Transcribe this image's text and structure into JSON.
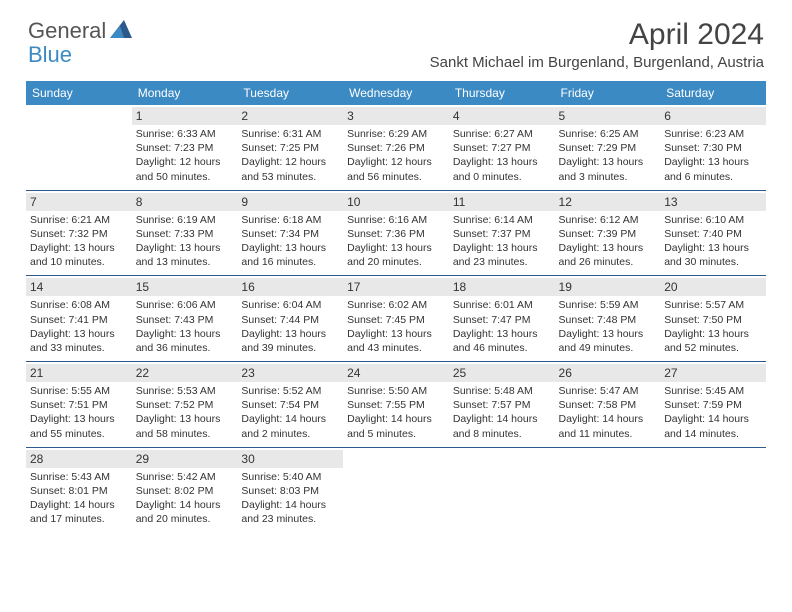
{
  "brand": {
    "part1": "General",
    "part2": "Blue"
  },
  "title": "April 2024",
  "location": "Sankt Michael im Burgenland, Burgenland, Austria",
  "colors": {
    "header_bg": "#3b8ac4",
    "header_text": "#ffffff",
    "daynum_bg": "#e8e8e8",
    "row_border": "#2d5a8a",
    "brand_gray": "#555555",
    "brand_blue": "#3b8ac4",
    "body_text": "#333333"
  },
  "weekdays": [
    "Sunday",
    "Monday",
    "Tuesday",
    "Wednesday",
    "Thursday",
    "Friday",
    "Saturday"
  ],
  "weeks": [
    [
      null,
      {
        "n": "1",
        "sr": "Sunrise: 6:33 AM",
        "ss": "Sunset: 7:23 PM",
        "d1": "Daylight: 12 hours",
        "d2": "and 50 minutes."
      },
      {
        "n": "2",
        "sr": "Sunrise: 6:31 AM",
        "ss": "Sunset: 7:25 PM",
        "d1": "Daylight: 12 hours",
        "d2": "and 53 minutes."
      },
      {
        "n": "3",
        "sr": "Sunrise: 6:29 AM",
        "ss": "Sunset: 7:26 PM",
        "d1": "Daylight: 12 hours",
        "d2": "and 56 minutes."
      },
      {
        "n": "4",
        "sr": "Sunrise: 6:27 AM",
        "ss": "Sunset: 7:27 PM",
        "d1": "Daylight: 13 hours",
        "d2": "and 0 minutes."
      },
      {
        "n": "5",
        "sr": "Sunrise: 6:25 AM",
        "ss": "Sunset: 7:29 PM",
        "d1": "Daylight: 13 hours",
        "d2": "and 3 minutes."
      },
      {
        "n": "6",
        "sr": "Sunrise: 6:23 AM",
        "ss": "Sunset: 7:30 PM",
        "d1": "Daylight: 13 hours",
        "d2": "and 6 minutes."
      }
    ],
    [
      {
        "n": "7",
        "sr": "Sunrise: 6:21 AM",
        "ss": "Sunset: 7:32 PM",
        "d1": "Daylight: 13 hours",
        "d2": "and 10 minutes."
      },
      {
        "n": "8",
        "sr": "Sunrise: 6:19 AM",
        "ss": "Sunset: 7:33 PM",
        "d1": "Daylight: 13 hours",
        "d2": "and 13 minutes."
      },
      {
        "n": "9",
        "sr": "Sunrise: 6:18 AM",
        "ss": "Sunset: 7:34 PM",
        "d1": "Daylight: 13 hours",
        "d2": "and 16 minutes."
      },
      {
        "n": "10",
        "sr": "Sunrise: 6:16 AM",
        "ss": "Sunset: 7:36 PM",
        "d1": "Daylight: 13 hours",
        "d2": "and 20 minutes."
      },
      {
        "n": "11",
        "sr": "Sunrise: 6:14 AM",
        "ss": "Sunset: 7:37 PM",
        "d1": "Daylight: 13 hours",
        "d2": "and 23 minutes."
      },
      {
        "n": "12",
        "sr": "Sunrise: 6:12 AM",
        "ss": "Sunset: 7:39 PM",
        "d1": "Daylight: 13 hours",
        "d2": "and 26 minutes."
      },
      {
        "n": "13",
        "sr": "Sunrise: 6:10 AM",
        "ss": "Sunset: 7:40 PM",
        "d1": "Daylight: 13 hours",
        "d2": "and 30 minutes."
      }
    ],
    [
      {
        "n": "14",
        "sr": "Sunrise: 6:08 AM",
        "ss": "Sunset: 7:41 PM",
        "d1": "Daylight: 13 hours",
        "d2": "and 33 minutes."
      },
      {
        "n": "15",
        "sr": "Sunrise: 6:06 AM",
        "ss": "Sunset: 7:43 PM",
        "d1": "Daylight: 13 hours",
        "d2": "and 36 minutes."
      },
      {
        "n": "16",
        "sr": "Sunrise: 6:04 AM",
        "ss": "Sunset: 7:44 PM",
        "d1": "Daylight: 13 hours",
        "d2": "and 39 minutes."
      },
      {
        "n": "17",
        "sr": "Sunrise: 6:02 AM",
        "ss": "Sunset: 7:45 PM",
        "d1": "Daylight: 13 hours",
        "d2": "and 43 minutes."
      },
      {
        "n": "18",
        "sr": "Sunrise: 6:01 AM",
        "ss": "Sunset: 7:47 PM",
        "d1": "Daylight: 13 hours",
        "d2": "and 46 minutes."
      },
      {
        "n": "19",
        "sr": "Sunrise: 5:59 AM",
        "ss": "Sunset: 7:48 PM",
        "d1": "Daylight: 13 hours",
        "d2": "and 49 minutes."
      },
      {
        "n": "20",
        "sr": "Sunrise: 5:57 AM",
        "ss": "Sunset: 7:50 PM",
        "d1": "Daylight: 13 hours",
        "d2": "and 52 minutes."
      }
    ],
    [
      {
        "n": "21",
        "sr": "Sunrise: 5:55 AM",
        "ss": "Sunset: 7:51 PM",
        "d1": "Daylight: 13 hours",
        "d2": "and 55 minutes."
      },
      {
        "n": "22",
        "sr": "Sunrise: 5:53 AM",
        "ss": "Sunset: 7:52 PM",
        "d1": "Daylight: 13 hours",
        "d2": "and 58 minutes."
      },
      {
        "n": "23",
        "sr": "Sunrise: 5:52 AM",
        "ss": "Sunset: 7:54 PM",
        "d1": "Daylight: 14 hours",
        "d2": "and 2 minutes."
      },
      {
        "n": "24",
        "sr": "Sunrise: 5:50 AM",
        "ss": "Sunset: 7:55 PM",
        "d1": "Daylight: 14 hours",
        "d2": "and 5 minutes."
      },
      {
        "n": "25",
        "sr": "Sunrise: 5:48 AM",
        "ss": "Sunset: 7:57 PM",
        "d1": "Daylight: 14 hours",
        "d2": "and 8 minutes."
      },
      {
        "n": "26",
        "sr": "Sunrise: 5:47 AM",
        "ss": "Sunset: 7:58 PM",
        "d1": "Daylight: 14 hours",
        "d2": "and 11 minutes."
      },
      {
        "n": "27",
        "sr": "Sunrise: 5:45 AM",
        "ss": "Sunset: 7:59 PM",
        "d1": "Daylight: 14 hours",
        "d2": "and 14 minutes."
      }
    ],
    [
      {
        "n": "28",
        "sr": "Sunrise: 5:43 AM",
        "ss": "Sunset: 8:01 PM",
        "d1": "Daylight: 14 hours",
        "d2": "and 17 minutes."
      },
      {
        "n": "29",
        "sr": "Sunrise: 5:42 AM",
        "ss": "Sunset: 8:02 PM",
        "d1": "Daylight: 14 hours",
        "d2": "and 20 minutes."
      },
      {
        "n": "30",
        "sr": "Sunrise: 5:40 AM",
        "ss": "Sunset: 8:03 PM",
        "d1": "Daylight: 14 hours",
        "d2": "and 23 minutes."
      },
      null,
      null,
      null,
      null
    ]
  ]
}
